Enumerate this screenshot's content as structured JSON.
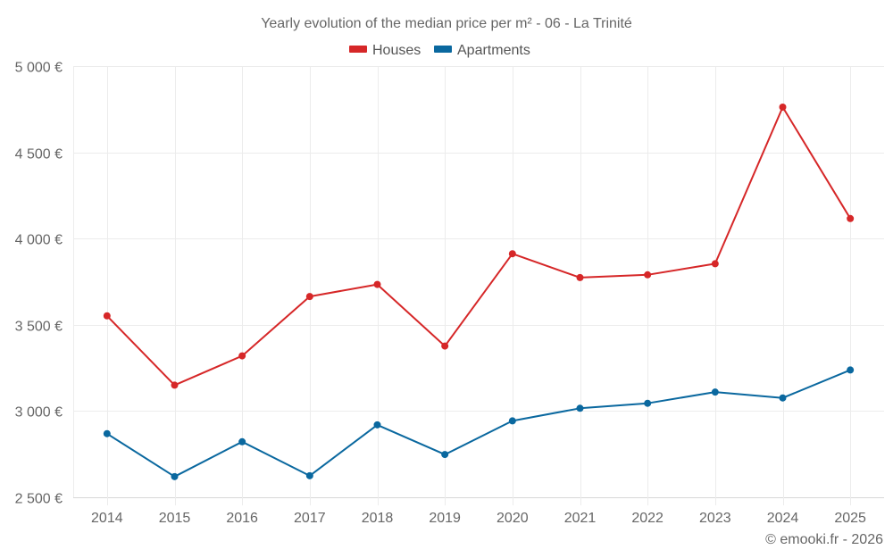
{
  "chart_data": {
    "type": "line",
    "title": "Yearly evolution of the median price per m² - 06 - La Trinité",
    "xlabel": "",
    "ylabel": "",
    "categories": [
      "2014",
      "2015",
      "2016",
      "2017",
      "2018",
      "2019",
      "2020",
      "2021",
      "2022",
      "2023",
      "2024",
      "2025"
    ],
    "series": [
      {
        "name": "Houses",
        "color": "#d62728",
        "values": [
          3552,
          3150,
          3320,
          3664,
          3734,
          3377,
          3912,
          3774,
          3790,
          3854,
          4762,
          4116
        ]
      },
      {
        "name": "Apartments",
        "color": "#0a689f",
        "values": [
          2869,
          2620,
          2822,
          2625,
          2920,
          2748,
          2943,
          3016,
          3045,
          3110,
          3076,
          3238
        ]
      }
    ],
    "ylim": [
      2500,
      5000
    ],
    "yticks": [
      2500,
      3000,
      3500,
      4000,
      4500,
      5000
    ],
    "ytick_labels": [
      "2 500 €",
      "3 000 €",
      "3 500 €",
      "4 000 €",
      "4 500 €",
      "5 000 €"
    ],
    "grid": true,
    "legend_position": "top-center",
    "credit": "© emooki.fr - 2026"
  }
}
